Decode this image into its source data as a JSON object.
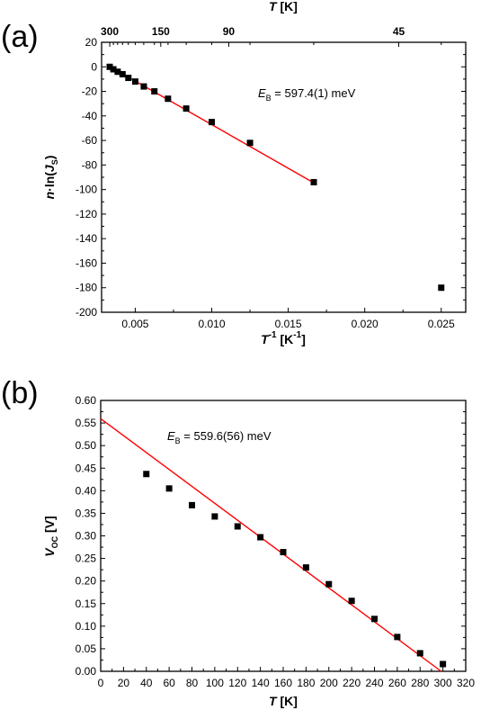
{
  "chart_data": [
    {
      "type": "scatter",
      "panel_label": "(a)",
      "xlabel_main": "T",
      "xlabel_sup": "-1",
      "xlabel_unit": "[K",
      "xlabel_unit_sup": "-1",
      "xlabel_close": "]",
      "xlim": [
        0.0028,
        0.0266
      ],
      "ylim": [
        -200,
        20
      ],
      "xticks": [
        0.005,
        0.01,
        0.015,
        0.02,
        0.025
      ],
      "xtick_labels": [
        "0.005",
        "0.010",
        "0.015",
        "0.020",
        "0.025"
      ],
      "yticks": [
        20,
        0,
        -20,
        -40,
        -60,
        -80,
        -100,
        -120,
        -140,
        -160,
        -180,
        -200
      ],
      "ytick_labels": [
        "20",
        "0",
        "-20",
        "-40",
        "-60",
        "-80",
        "-100",
        "-120",
        "-140",
        "-160",
        "-180",
        "-200"
      ],
      "top_axis": {
        "label_main": "T",
        "label_unit": "[K]",
        "ticks_T": [
          300,
          150,
          90,
          45
        ],
        "tick_labels": [
          "300",
          "150",
          "90",
          "45"
        ],
        "minor_ticks_T": [
          280,
          260,
          240,
          220,
          200,
          180,
          160,
          140,
          120,
          100,
          80,
          60,
          40
        ]
      },
      "ylabel_parts": [
        "n",
        "·ln(",
        "J",
        "S",
        ")"
      ],
      "series": [
        {
          "kind": "points",
          "color": "#000000",
          "x": [
            0.00333,
            0.00357,
            0.00385,
            0.00417,
            0.00455,
            0.005,
            0.00556,
            0.00625,
            0.00714,
            0.00833,
            0.01,
            0.0125,
            0.01667,
            0.025
          ],
          "y": [
            0,
            -2,
            -4,
            -6,
            -9,
            -12,
            -16,
            -20,
            -26,
            -34,
            -45,
            -62,
            -94,
            -180
          ]
        },
        {
          "kind": "line",
          "color": "#ff0000",
          "x": [
            0.0033,
            0.0166
          ],
          "y": [
            0.5,
            -94
          ]
        }
      ],
      "annotation": {
        "text_main": "E",
        "text_sub": "B",
        "text_rest": " = 597.4(1) meV"
      }
    },
    {
      "type": "scatter",
      "panel_label": "(b)",
      "xlabel_main": "T",
      "xlabel_unit": " [K]",
      "ylabel_main": "V",
      "ylabel_sub": "OC",
      "ylabel_unit": " [V]",
      "xlim": [
        0,
        320
      ],
      "ylim": [
        0,
        0.6
      ],
      "xticks": [
        0,
        20,
        40,
        60,
        80,
        100,
        120,
        140,
        160,
        180,
        200,
        220,
        240,
        260,
        280,
        300,
        320
      ],
      "xtick_labels": [
        "0",
        "20",
        "40",
        "60",
        "80",
        "100",
        "120",
        "140",
        "160",
        "180",
        "200",
        "220",
        "240",
        "260",
        "280",
        "300",
        "320"
      ],
      "yticks": [
        0,
        0.05,
        0.1,
        0.15,
        0.2,
        0.25,
        0.3,
        0.35,
        0.4,
        0.45,
        0.5,
        0.55,
        0.6
      ],
      "ytick_labels": [
        "0.00",
        "0.05",
        "0.10",
        "0.15",
        "0.20",
        "0.25",
        "0.30",
        "0.35",
        "0.40",
        "0.45",
        "0.50",
        "0.55",
        "0.60"
      ],
      "series": [
        {
          "kind": "points",
          "color": "#000000",
          "x": [
            40,
            60,
            80,
            100,
            120,
            140,
            160,
            180,
            200,
            220,
            240,
            260,
            280,
            300
          ],
          "y": [
            0.437,
            0.405,
            0.368,
            0.343,
            0.321,
            0.297,
            0.264,
            0.23,
            0.193,
            0.156,
            0.116,
            0.076,
            0.04,
            0.016
          ]
        },
        {
          "kind": "line",
          "color": "#ff0000",
          "x": [
            0,
            298.5
          ],
          "y": [
            0.5596,
            0.0
          ]
        }
      ],
      "annotation": {
        "text_main": "E",
        "text_sub": "B",
        "text_rest": " =  559.6(56) meV"
      }
    }
  ]
}
